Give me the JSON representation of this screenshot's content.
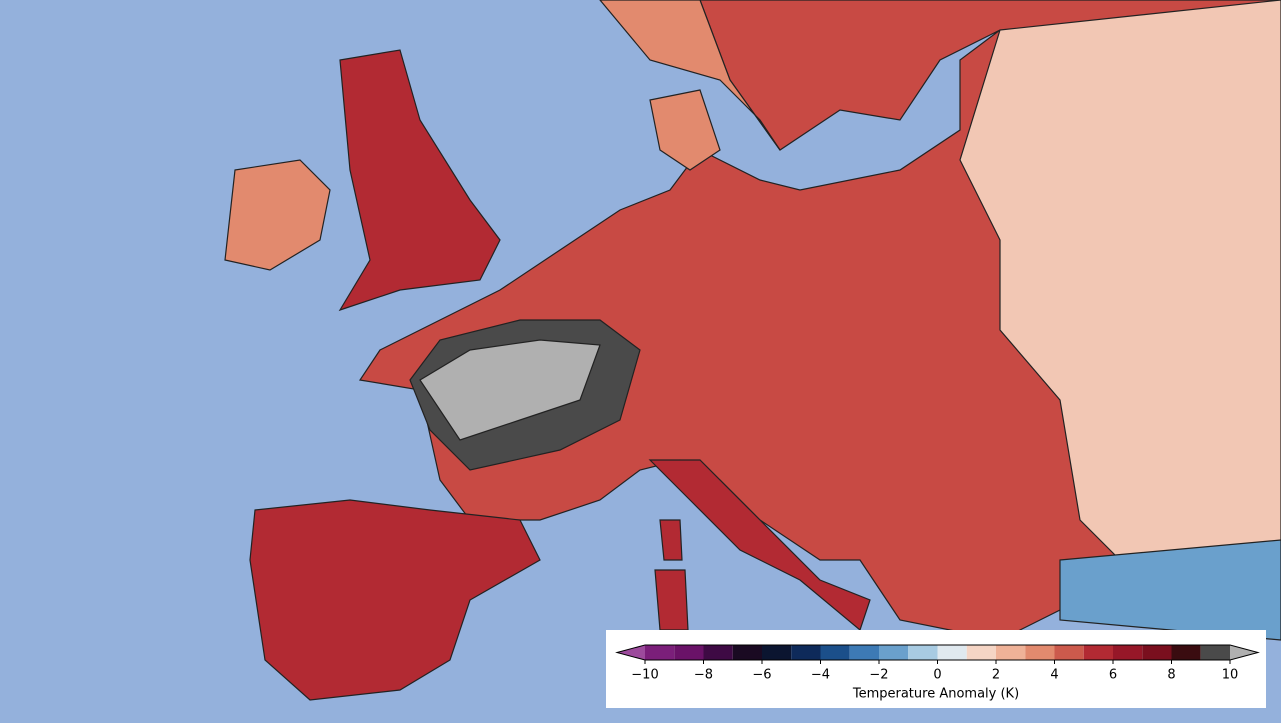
{
  "colorbar": {
    "label": "Temperature Anomaly (K)",
    "ticks": [
      {
        "value": -10,
        "label": "−10"
      },
      {
        "value": -8,
        "label": "−8"
      },
      {
        "value": -6,
        "label": "−6"
      },
      {
        "value": -4,
        "label": "−4"
      },
      {
        "value": -2,
        "label": "−2"
      },
      0,
      2,
      4,
      6,
      8,
      10
    ],
    "levels": [
      -10,
      -9,
      -8,
      -7,
      -6,
      -5,
      -4,
      -3,
      -2,
      -1,
      0,
      1,
      2,
      3,
      4,
      5,
      6,
      7,
      8,
      9,
      10
    ],
    "colors": [
      "#7b1f7a",
      "#6a1268",
      "#3e0a44",
      "#1a0a22",
      "#0b1530",
      "#0e2a5a",
      "#1b4f8a",
      "#3d7ab5",
      "#6aa0cc",
      "#a8cbe2",
      "#e0e9ef",
      "#f5d5c5",
      "#efb298",
      "#e28a6e",
      "#cc5a4c",
      "#b22a33",
      "#961728",
      "#7a0f1e",
      "#3a0c10",
      "#4a4a4a"
    ],
    "under_color": "#9c4a9c",
    "over_color": "#b0b0b0"
  }
}
